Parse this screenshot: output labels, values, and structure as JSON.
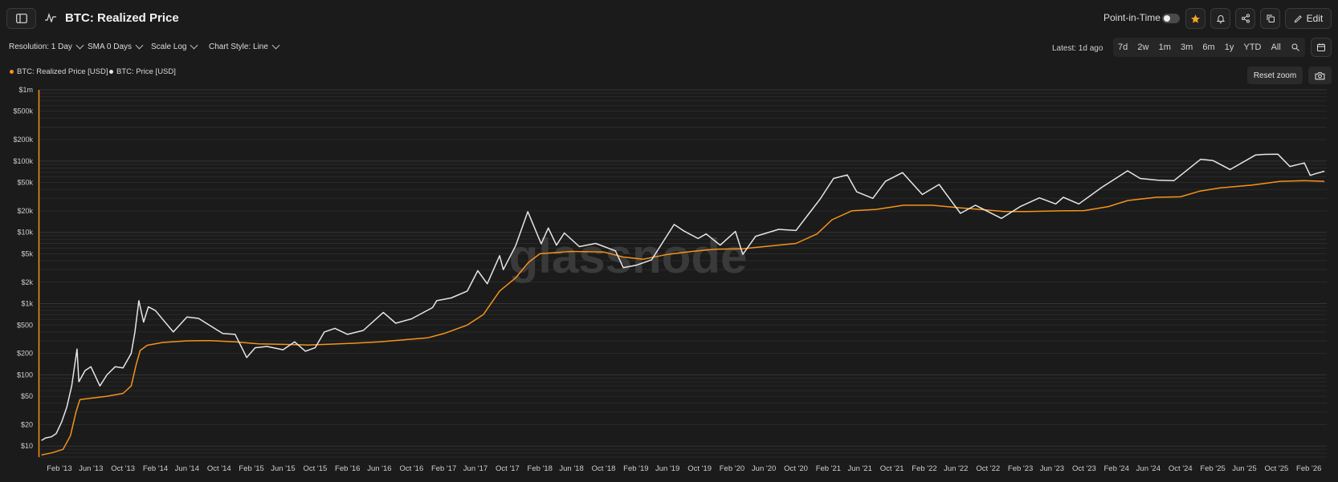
{
  "header": {
    "title": "BTC: Realized Price",
    "point_in_time_label": "Point-in-Time",
    "edit_label": "Edit"
  },
  "controls": {
    "resolution": "Resolution: 1 Day",
    "sma": "SMA 0 Days",
    "scale": "Scale Log",
    "chart_style": "Chart Style: Line",
    "latest": "Latest: 1d ago",
    "ranges": [
      "7d",
      "2w",
      "1m",
      "3m",
      "6m",
      "1y",
      "YTD",
      "All"
    ],
    "reset_zoom": "Reset zoom"
  },
  "colors": {
    "realized": "#f7931a",
    "price": "#e6e6e6",
    "accent_star": "#f5a623"
  },
  "icons": [
    "sidebar-icon",
    "line-chart-icon",
    "star-icon",
    "bell-icon",
    "share-icon",
    "copy-icon",
    "pencil-icon",
    "zoom-icon",
    "calendar-icon",
    "camera-icon"
  ],
  "watermark": "glassnode",
  "chart_data": {
    "type": "line",
    "scale": "log",
    "ylim": [
      7,
      1000000
    ],
    "xlim": [
      "2012-11-20",
      "2026-04-10"
    ],
    "ytick_labels": [
      "$10",
      "$20",
      "$50",
      "$100",
      "$200",
      "$500",
      "$1k",
      "$2k",
      "$5k",
      "$10k",
      "$20k",
      "$50k",
      "$100k",
      "$200k",
      "$500k",
      "$1m"
    ],
    "ytick_values": [
      10,
      20,
      50,
      100,
      200,
      500,
      1000,
      2000,
      5000,
      10000,
      20000,
      50000,
      100000,
      200000,
      500000,
      1000000
    ],
    "xtick_labels": [
      "Feb '13",
      "Jun '13",
      "Oct '13",
      "Feb '14",
      "Jun '14",
      "Oct '14",
      "Feb '15",
      "Jun '15",
      "Oct '15",
      "Feb '16",
      "Jun '16",
      "Oct '16",
      "Feb '17",
      "Jun '17",
      "Oct '17",
      "Feb '18",
      "Jun '18",
      "Oct '18",
      "Feb '19",
      "Jun '19",
      "Oct '19",
      "Feb '20",
      "Jun '20",
      "Oct '20",
      "Feb '21",
      "Jun '21",
      "Oct '21",
      "Feb '22",
      "Jun '22",
      "Oct '22",
      "Feb '23",
      "Jun '23",
      "Oct '23",
      "Feb '24",
      "Jun '24",
      "Oct '24",
      "Feb '25",
      "Jun '25",
      "Oct '25",
      "Feb '26"
    ],
    "xtick_dates": [
      "2013-02-01",
      "2013-06-01",
      "2013-10-01",
      "2014-02-01",
      "2014-06-01",
      "2014-10-01",
      "2015-02-01",
      "2015-06-01",
      "2015-10-01",
      "2016-02-01",
      "2016-06-01",
      "2016-10-01",
      "2017-02-01",
      "2017-06-01",
      "2017-10-01",
      "2018-02-01",
      "2018-06-01",
      "2018-10-01",
      "2019-02-01",
      "2019-06-01",
      "2019-10-01",
      "2020-02-01",
      "2020-06-01",
      "2020-10-01",
      "2021-02-01",
      "2021-06-01",
      "2021-10-01",
      "2022-02-01",
      "2022-06-01",
      "2022-10-01",
      "2023-02-01",
      "2023-06-01",
      "2023-10-01",
      "2024-02-01",
      "2024-06-01",
      "2024-10-01",
      "2025-02-01",
      "2025-06-01",
      "2025-10-01",
      "2026-02-01"
    ],
    "series": [
      {
        "name": "BTC: Realized Price [USD]",
        "color": "#f7931a",
        "points": [
          [
            "2012-11-25",
            7.5
          ],
          [
            "2013-01-01",
            8
          ],
          [
            "2013-02-15",
            9
          ],
          [
            "2013-03-15",
            14
          ],
          [
            "2013-04-05",
            30
          ],
          [
            "2013-04-20",
            45
          ],
          [
            "2013-06-01",
            47
          ],
          [
            "2013-08-01",
            50
          ],
          [
            "2013-10-01",
            55
          ],
          [
            "2013-11-01",
            70
          ],
          [
            "2013-11-20",
            140
          ],
          [
            "2013-12-05",
            220
          ],
          [
            "2014-01-01",
            260
          ],
          [
            "2014-03-01",
            285
          ],
          [
            "2014-06-01",
            300
          ],
          [
            "2014-09-01",
            302
          ],
          [
            "2014-12-01",
            290
          ],
          [
            "2015-03-01",
            272
          ],
          [
            "2015-06-01",
            268
          ],
          [
            "2015-09-01",
            262
          ],
          [
            "2015-12-01",
            270
          ],
          [
            "2016-03-01",
            278
          ],
          [
            "2016-06-01",
            290
          ],
          [
            "2016-09-01",
            310
          ],
          [
            "2016-12-01",
            330
          ],
          [
            "2017-02-01",
            380
          ],
          [
            "2017-05-01",
            500
          ],
          [
            "2017-07-01",
            700
          ],
          [
            "2017-09-01",
            1500
          ],
          [
            "2017-11-01",
            2300
          ],
          [
            "2017-12-20",
            3800
          ],
          [
            "2018-02-01",
            5000
          ],
          [
            "2018-06-01",
            5400
          ],
          [
            "2018-10-01",
            5300
          ],
          [
            "2018-12-15",
            4500
          ],
          [
            "2019-03-01",
            4200
          ],
          [
            "2019-06-01",
            4900
          ],
          [
            "2019-09-01",
            5400
          ],
          [
            "2019-12-01",
            5800
          ],
          [
            "2020-03-15",
            5900
          ],
          [
            "2020-06-01",
            6300
          ],
          [
            "2020-10-01",
            7000
          ],
          [
            "2020-12-20",
            9500
          ],
          [
            "2021-02-15",
            15000
          ],
          [
            "2021-05-01",
            20000
          ],
          [
            "2021-08-01",
            21000
          ],
          [
            "2021-11-15",
            24000
          ],
          [
            "2022-03-01",
            24000
          ],
          [
            "2022-06-20",
            22000
          ],
          [
            "2022-09-01",
            21000
          ],
          [
            "2022-12-01",
            19600
          ],
          [
            "2023-03-01",
            19600
          ],
          [
            "2023-07-01",
            20000
          ],
          [
            "2023-10-01",
            20200
          ],
          [
            "2024-01-01",
            23000
          ],
          [
            "2024-03-15",
            28000
          ],
          [
            "2024-07-01",
            31000
          ],
          [
            "2024-10-01",
            31500
          ],
          [
            "2024-12-15",
            38000
          ],
          [
            "2025-03-01",
            42000
          ],
          [
            "2025-07-01",
            46000
          ],
          [
            "2025-10-15",
            52000
          ],
          [
            "2026-01-15",
            53000
          ],
          [
            "2026-04-01",
            52000
          ]
        ]
      },
      {
        "name": "BTC: Price [USD]",
        "color": "#e6e6e6",
        "points": [
          [
            "2012-11-25",
            12
          ],
          [
            "2012-12-10",
            13
          ],
          [
            "2013-01-01",
            13.5
          ],
          [
            "2013-01-20",
            15
          ],
          [
            "2013-02-10",
            22
          ],
          [
            "2013-03-01",
            35
          ],
          [
            "2013-03-20",
            70
          ],
          [
            "2013-04-09",
            230
          ],
          [
            "2013-04-16",
            80
          ],
          [
            "2013-05-10",
            115
          ],
          [
            "2013-06-01",
            130
          ],
          [
            "2013-07-05",
            70
          ],
          [
            "2013-08-01",
            100
          ],
          [
            "2013-09-01",
            130
          ],
          [
            "2013-10-01",
            125
          ],
          [
            "2013-11-01",
            200
          ],
          [
            "2013-11-15",
            400
          ],
          [
            "2013-11-30",
            1100
          ],
          [
            "2013-12-18",
            550
          ],
          [
            "2014-01-05",
            900
          ],
          [
            "2014-02-01",
            800
          ],
          [
            "2014-03-01",
            600
          ],
          [
            "2014-04-10",
            400
          ],
          [
            "2014-06-01",
            650
          ],
          [
            "2014-07-15",
            620
          ],
          [
            "2014-09-01",
            480
          ],
          [
            "2014-10-15",
            380
          ],
          [
            "2014-12-01",
            370
          ],
          [
            "2015-01-14",
            175
          ],
          [
            "2015-02-15",
            240
          ],
          [
            "2015-04-01",
            250
          ],
          [
            "2015-06-01",
            225
          ],
          [
            "2015-07-15",
            290
          ],
          [
            "2015-08-25",
            215
          ],
          [
            "2015-10-01",
            240
          ],
          [
            "2015-11-05",
            400
          ],
          [
            "2015-12-15",
            450
          ],
          [
            "2016-02-01",
            370
          ],
          [
            "2016-04-01",
            420
          ],
          [
            "2016-06-16",
            750
          ],
          [
            "2016-08-02",
            530
          ],
          [
            "2016-10-01",
            610
          ],
          [
            "2016-12-20",
            880
          ],
          [
            "2017-01-05",
            1100
          ],
          [
            "2017-03-01",
            1200
          ],
          [
            "2017-05-01",
            1500
          ],
          [
            "2017-06-10",
            2900
          ],
          [
            "2017-07-16",
            1900
          ],
          [
            "2017-09-01",
            4700
          ],
          [
            "2017-09-15",
            3000
          ],
          [
            "2017-11-01",
            6500
          ],
          [
            "2017-12-17",
            19500
          ],
          [
            "2018-02-06",
            6900
          ],
          [
            "2018-03-05",
            11500
          ],
          [
            "2018-04-05",
            6600
          ],
          [
            "2018-05-05",
            9800
          ],
          [
            "2018-07-01",
            6300
          ],
          [
            "2018-09-01",
            7000
          ],
          [
            "2018-11-15",
            5500
          ],
          [
            "2018-12-15",
            3200
          ],
          [
            "2019-02-01",
            3450
          ],
          [
            "2019-04-01",
            4100
          ],
          [
            "2019-06-26",
            12900
          ],
          [
            "2019-08-01",
            10500
          ],
          [
            "2019-09-25",
            8200
          ],
          [
            "2019-10-26",
            9500
          ],
          [
            "2019-12-18",
            6600
          ],
          [
            "2020-02-14",
            10300
          ],
          [
            "2020-03-13",
            4900
          ],
          [
            "2020-05-01",
            8800
          ],
          [
            "2020-07-27",
            11000
          ],
          [
            "2020-10-01",
            10600
          ],
          [
            "2020-11-20",
            18500
          ],
          [
            "2020-12-31",
            29000
          ],
          [
            "2021-02-21",
            57000
          ],
          [
            "2021-04-14",
            64000
          ],
          [
            "2021-05-20",
            37000
          ],
          [
            "2021-07-20",
            30000
          ],
          [
            "2021-09-06",
            52000
          ],
          [
            "2021-11-10",
            69000
          ],
          [
            "2022-01-24",
            34000
          ],
          [
            "2022-03-29",
            47000
          ],
          [
            "2022-06-18",
            18500
          ],
          [
            "2022-08-14",
            24000
          ],
          [
            "2022-11-21",
            15700
          ],
          [
            "2023-01-31",
            23000
          ],
          [
            "2023-04-14",
            30500
          ],
          [
            "2023-06-15",
            25000
          ],
          [
            "2023-07-14",
            31000
          ],
          [
            "2023-09-11",
            25000
          ],
          [
            "2023-12-08",
            43000
          ],
          [
            "2024-03-14",
            73000
          ],
          [
            "2024-05-01",
            57000
          ],
          [
            "2024-07-05",
            54000
          ],
          [
            "2024-09-06",
            53000
          ],
          [
            "2024-12-17",
            106000
          ],
          [
            "2025-02-01",
            102000
          ],
          [
            "2025-04-08",
            76000
          ],
          [
            "2025-07-14",
            122000
          ],
          [
            "2025-08-14",
            124000
          ],
          [
            "2025-10-06",
            125000
          ],
          [
            "2025-11-21",
            84000
          ],
          [
            "2026-01-15",
            94000
          ],
          [
            "2026-02-06",
            63000
          ],
          [
            "2026-03-01",
            67000
          ],
          [
            "2026-04-01",
            72000
          ]
        ]
      }
    ]
  }
}
